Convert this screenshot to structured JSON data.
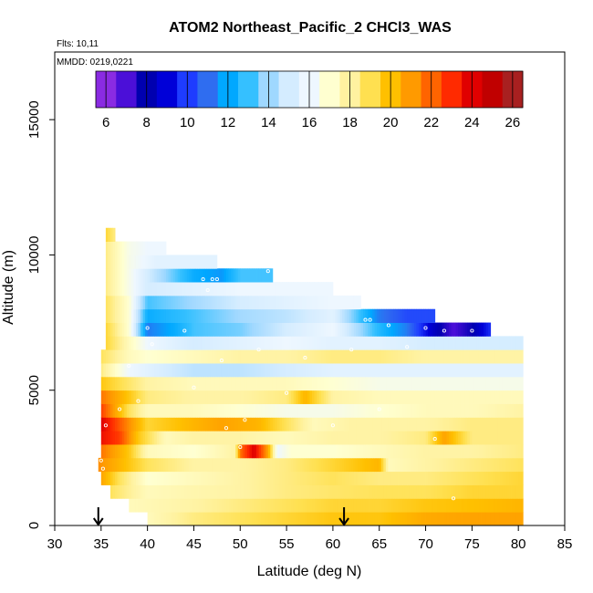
{
  "chart_data": {
    "type": "heatmap",
    "title": "ATOM2 Northeast_Pacific_2 CHCl3_WAS",
    "flights_label": "Flts: 10,11",
    "dates_label": "MMDD: 0219,0221",
    "xlabel": "Latitude (deg N)",
    "ylabel": "Altitude (m)",
    "xlim": [
      30,
      85
    ],
    "ylim": [
      0,
      17500
    ],
    "x_ticks": [
      30,
      35,
      40,
      45,
      50,
      55,
      60,
      65,
      70,
      75,
      80,
      85
    ],
    "y_ticks": [
      0,
      5000,
      10000,
      15000
    ],
    "colorbar": {
      "range": [
        5.5,
        26.5
      ],
      "ticks": [
        6,
        8,
        10,
        12,
        14,
        16,
        18,
        20,
        22,
        24,
        26
      ],
      "colors": [
        "#8a2be2",
        "#4b0fd8",
        "#0000b0",
        "#0000d8",
        "#1e3cff",
        "#2f6df0",
        "#00a8ff",
        "#35c0ff",
        "#9fd8ff",
        "#d4ecff",
        "#eef7ff",
        "#ffffd0",
        "#fff2a0",
        "#ffe050",
        "#ffc000",
        "#ff9a00",
        "#ff6400",
        "#ff2a00",
        "#e00000",
        "#c00000",
        "#a82020"
      ]
    },
    "markers": [
      34.7,
      61.2
    ],
    "bands": [
      {
        "alt": [
          0,
          500
        ],
        "lat": [
          40,
          80.5
        ],
        "vals": [
          [
            40,
            17.5
          ],
          [
            45,
            18.5
          ],
          [
            50,
            19
          ],
          [
            55,
            19.5
          ],
          [
            60,
            20
          ],
          [
            65,
            20
          ],
          [
            70,
            20.8
          ],
          [
            75,
            21
          ],
          [
            80.5,
            21
          ]
        ]
      },
      {
        "alt": [
          500,
          1000
        ],
        "lat": [
          38,
          80.5
        ],
        "vals": [
          [
            38,
            17.5
          ],
          [
            45,
            18
          ],
          [
            50,
            18.5
          ],
          [
            55,
            19
          ],
          [
            60,
            19.5
          ],
          [
            65,
            19.5
          ],
          [
            70,
            20
          ],
          [
            75,
            20.2
          ],
          [
            80.5,
            20.5
          ]
        ]
      },
      {
        "alt": [
          1000,
          1500
        ],
        "lat": [
          36,
          80.5
        ],
        "vals": [
          [
            36,
            19
          ],
          [
            40,
            17.5
          ],
          [
            45,
            17.8
          ],
          [
            50,
            18
          ],
          [
            55,
            18.5
          ],
          [
            60,
            18.8
          ],
          [
            65,
            19
          ],
          [
            70,
            19
          ],
          [
            75,
            19.5
          ],
          [
            80.5,
            19.5
          ]
        ]
      },
      {
        "alt": [
          1500,
          2000
        ],
        "lat": [
          35,
          80.5
        ],
        "vals": [
          [
            35,
            21
          ],
          [
            37,
            19
          ],
          [
            40,
            17
          ],
          [
            45,
            17.5
          ],
          [
            50,
            18
          ],
          [
            55,
            18.5
          ],
          [
            60,
            19
          ],
          [
            65,
            18.5
          ],
          [
            70,
            18.5
          ],
          [
            75,
            19
          ],
          [
            80.5,
            19.5
          ]
        ]
      },
      {
        "alt": [
          2000,
          2500
        ],
        "lat": [
          34.7,
          80.5
        ],
        "vals": [
          [
            34.7,
            21.5
          ],
          [
            37,
            20.5
          ],
          [
            40,
            19
          ],
          [
            45,
            18
          ],
          [
            50,
            18
          ],
          [
            55,
            18.5
          ],
          [
            60,
            19.5
          ],
          [
            65,
            20.5
          ],
          [
            66,
            17.5
          ],
          [
            70,
            18
          ],
          [
            75,
            18.5
          ],
          [
            80.5,
            19
          ]
        ]
      },
      {
        "alt": [
          2500,
          3000
        ],
        "lat": [
          35,
          80.5
        ],
        "vals": [
          [
            35,
            22
          ],
          [
            38,
            20
          ],
          [
            40,
            17.5
          ],
          [
            45,
            17
          ],
          [
            49.5,
            18
          ],
          [
            50,
            22
          ],
          [
            51.5,
            24.5
          ],
          [
            53,
            21
          ],
          [
            54,
            16
          ],
          [
            55.5,
            17
          ],
          [
            60,
            17
          ],
          [
            65,
            17.5
          ],
          [
            70,
            18
          ],
          [
            75,
            18
          ],
          [
            80.5,
            18.5
          ]
        ]
      },
      {
        "alt": [
          3000,
          3500
        ],
        "lat": [
          35,
          80.5
        ],
        "vals": [
          [
            35,
            24
          ],
          [
            37,
            23
          ],
          [
            39,
            20
          ],
          [
            42,
            17.5
          ],
          [
            45,
            18
          ],
          [
            50,
            18
          ],
          [
            55,
            17.5
          ],
          [
            60,
            18
          ],
          [
            65,
            18
          ],
          [
            70,
            18.5
          ],
          [
            72,
            21
          ],
          [
            75,
            18.5
          ],
          [
            80.5,
            18.5
          ]
        ]
      },
      {
        "alt": [
          3500,
          4000
        ],
        "lat": [
          35,
          80.5
        ],
        "vals": [
          [
            35,
            24.5
          ],
          [
            37,
            22.5
          ],
          [
            40,
            19.5
          ],
          [
            45,
            20.5
          ],
          [
            48,
            21
          ],
          [
            52,
            20.5
          ],
          [
            55,
            19
          ],
          [
            58,
            17.5
          ],
          [
            62,
            18
          ],
          [
            65,
            18
          ],
          [
            70,
            18
          ],
          [
            75,
            18.5
          ],
          [
            80.5,
            18.5
          ]
        ]
      },
      {
        "alt": [
          4000,
          4500
        ],
        "lat": [
          35,
          80.5
        ],
        "vals": [
          [
            35,
            23
          ],
          [
            38,
            19
          ],
          [
            40,
            17.5
          ],
          [
            45,
            17.5
          ],
          [
            50,
            17
          ],
          [
            55,
            16.5
          ],
          [
            60,
            16.5
          ],
          [
            65,
            17
          ],
          [
            70,
            17.5
          ],
          [
            75,
            17.5
          ],
          [
            80.5,
            18
          ]
        ]
      },
      {
        "alt": [
          4500,
          5000
        ],
        "lat": [
          35,
          80.5
        ],
        "vals": [
          [
            35,
            22
          ],
          [
            38,
            20
          ],
          [
            40,
            18.5
          ],
          [
            45,
            18
          ],
          [
            50,
            18
          ],
          [
            55,
            18.5
          ],
          [
            57,
            20.5
          ],
          [
            60,
            18
          ],
          [
            65,
            17.5
          ],
          [
            70,
            17.5
          ],
          [
            75,
            17.5
          ],
          [
            80.5,
            17.5
          ]
        ]
      },
      {
        "alt": [
          5000,
          5500
        ],
        "lat": [
          35,
          80.5
        ],
        "vals": [
          [
            35,
            20
          ],
          [
            40,
            18
          ],
          [
            45,
            17.5
          ],
          [
            50,
            17.5
          ],
          [
            55,
            17.5
          ],
          [
            60,
            17
          ],
          [
            65,
            16.5
          ],
          [
            70,
            16.5
          ],
          [
            75,
            16.5
          ],
          [
            80.5,
            16.5
          ]
        ]
      },
      {
        "alt": [
          5500,
          6000
        ],
        "lat": [
          35,
          80.5
        ],
        "vals": [
          [
            35,
            18.5
          ],
          [
            38,
            16
          ],
          [
            42,
            15
          ],
          [
            45,
            14.5
          ],
          [
            50,
            14.5
          ],
          [
            55,
            15
          ],
          [
            60,
            15.5
          ],
          [
            65,
            15.5
          ],
          [
            70,
            15.5
          ],
          [
            75,
            15.5
          ],
          [
            80.5,
            15.5
          ]
        ]
      },
      {
        "alt": [
          6000,
          6500
        ],
        "lat": [
          35,
          80.5
        ],
        "vals": [
          [
            35,
            19
          ],
          [
            38,
            17.5
          ],
          [
            40,
            17
          ],
          [
            45,
            17.5
          ],
          [
            50,
            18
          ],
          [
            55,
            18
          ],
          [
            60,
            18.5
          ],
          [
            65,
            18.5
          ],
          [
            70,
            18
          ],
          [
            75,
            18
          ],
          [
            80.5,
            18
          ]
        ]
      },
      {
        "alt": [
          6500,
          7000
        ],
        "lat": [
          35.5,
          80.5
        ],
        "vals": [
          [
            35.5,
            19.5
          ],
          [
            38,
            17.5
          ],
          [
            40,
            16
          ],
          [
            45,
            15
          ],
          [
            50,
            15.5
          ],
          [
            55,
            16
          ],
          [
            60,
            15.5
          ],
          [
            65,
            15.5
          ],
          [
            70,
            15
          ],
          [
            75,
            15
          ],
          [
            80.5,
            15
          ]
        ]
      },
      {
        "alt": [
          7000,
          7500
        ],
        "lat": [
          35.5,
          77
        ],
        "vals": [
          [
            35.5,
            19.5
          ],
          [
            38,
            17
          ],
          [
            40,
            11
          ],
          [
            43,
            12
          ],
          [
            45,
            13
          ],
          [
            50,
            13.5
          ],
          [
            55,
            15
          ],
          [
            60,
            16
          ],
          [
            65,
            12.5
          ],
          [
            68,
            11
          ],
          [
            71,
            8
          ],
          [
            73,
            6.5
          ],
          [
            75,
            7.5
          ],
          [
            77,
            9.5
          ]
        ]
      },
      {
        "alt": [
          7500,
          8000
        ],
        "lat": [
          35.5,
          71
        ],
        "vals": [
          [
            35.5,
            19
          ],
          [
            38,
            17
          ],
          [
            40,
            12
          ],
          [
            45,
            13
          ],
          [
            50,
            14
          ],
          [
            55,
            14.5
          ],
          [
            60,
            15.5
          ],
          [
            65,
            11
          ],
          [
            68,
            10
          ],
          [
            71,
            10
          ]
        ]
      },
      {
        "alt": [
          8000,
          8500
        ],
        "lat": [
          35.5,
          63
        ],
        "vals": [
          [
            35.5,
            19
          ],
          [
            38,
            17
          ],
          [
            40,
            13
          ],
          [
            45,
            14
          ],
          [
            50,
            15
          ],
          [
            55,
            15.5
          ],
          [
            60,
            16
          ],
          [
            63,
            16
          ]
        ]
      },
      {
        "alt": [
          8500,
          9000
        ],
        "lat": [
          35.5,
          60
        ],
        "vals": [
          [
            35.5,
            18.5
          ],
          [
            38,
            16.5
          ],
          [
            40,
            15
          ],
          [
            45,
            15.5
          ],
          [
            50,
            16
          ],
          [
            55,
            16
          ],
          [
            60,
            16
          ]
        ]
      },
      {
        "alt": [
          9000,
          9500
        ],
        "lat": [
          35.5,
          53.5
        ],
        "vals": [
          [
            35.5,
            18.5
          ],
          [
            38,
            16.5
          ],
          [
            40,
            15
          ],
          [
            45,
            12
          ],
          [
            48,
            11.5
          ],
          [
            50,
            13
          ],
          [
            53.5,
            13
          ]
        ]
      },
      {
        "alt": [
          9500,
          10000
        ],
        "lat": [
          35.5,
          47.5
        ],
        "vals": [
          [
            35.5,
            18.5
          ],
          [
            38,
            16.5
          ],
          [
            41,
            15.5
          ],
          [
            44,
            15.5
          ],
          [
            47.5,
            15.5
          ]
        ]
      },
      {
        "alt": [
          10000,
          10500
        ],
        "lat": [
          35.5,
          42
        ],
        "vals": [
          [
            35.5,
            18.5
          ],
          [
            38,
            16.5
          ],
          [
            40,
            16
          ],
          [
            42,
            16
          ]
        ]
      },
      {
        "alt": [
          10500,
          11000
        ],
        "lat": [
          35.5,
          36.5
        ],
        "vals": [
          [
            35.5,
            19.5
          ],
          [
            36.5,
            18.5
          ]
        ]
      }
    ],
    "sample_points": [
      [
        35,
        2400
      ],
      [
        35.2,
        2100
      ],
      [
        35.5,
        3700
      ],
      [
        37,
        4300
      ],
      [
        38,
        5900
      ],
      [
        39,
        4600
      ],
      [
        40,
        7300
      ],
      [
        40.5,
        6700
      ],
      [
        44,
        7200
      ],
      [
        45,
        5100
      ],
      [
        46,
        9100
      ],
      [
        46.5,
        8700
      ],
      [
        47,
        9100
      ],
      [
        47.5,
        9100
      ],
      [
        48,
        6100
      ],
      [
        48.5,
        3600
      ],
      [
        50,
        2900
      ],
      [
        50.5,
        3900
      ],
      [
        52,
        6500
      ],
      [
        53,
        9400
      ],
      [
        55,
        4900
      ],
      [
        57,
        6200
      ],
      [
        60,
        3700
      ],
      [
        62,
        6500
      ],
      [
        63.5,
        7600
      ],
      [
        64,
        7600
      ],
      [
        65,
        4300
      ],
      [
        66,
        7400
      ],
      [
        68,
        6600
      ],
      [
        70,
        7300
      ],
      [
        71,
        3200
      ],
      [
        72,
        7200
      ],
      [
        73,
        1000
      ],
      [
        75,
        7200
      ]
    ]
  }
}
